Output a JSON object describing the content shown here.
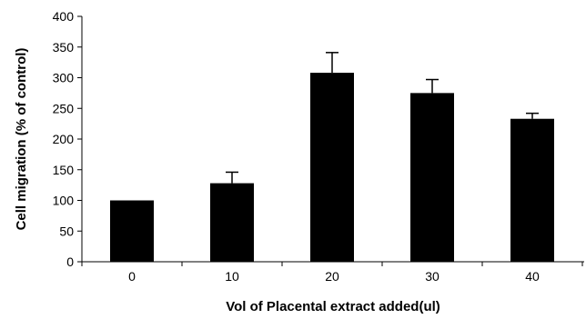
{
  "chart_data": {
    "type": "bar",
    "title": "",
    "xlabel": "Vol of Placental extract added(ul)",
    "ylabel": "Cell migration (% of control)",
    "categories": [
      "0",
      "10",
      "20",
      "30",
      "40"
    ],
    "values": [
      100,
      128,
      308,
      275,
      233
    ],
    "error_bars": [
      0,
      18,
      33,
      22,
      9
    ],
    "ylim": [
      0,
      400
    ],
    "yticks": [
      "0",
      "50",
      "100",
      "150",
      "200",
      "250",
      "300",
      "350",
      "400"
    ],
    "bar_color": "#000000",
    "grid": false,
    "legend": "none"
  }
}
